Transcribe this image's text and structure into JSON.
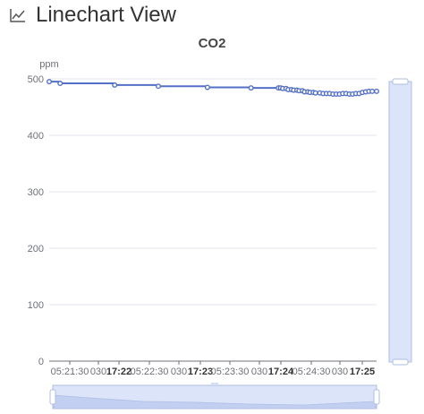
{
  "header": {
    "title": "Linechart View",
    "icon": "line-chart-icon"
  },
  "chart_data": {
    "type": "line",
    "title": "CO2",
    "ylabel": "ppm",
    "xlabel": "",
    "ylim": [
      0,
      500
    ],
    "y_ticks": [
      0,
      100,
      200,
      300,
      400,
      500
    ],
    "x_tick_labels": [
      {
        "text": "05:21:30",
        "bold": false
      },
      {
        "text": "030",
        "bold": false
      },
      {
        "text": "17:22",
        "bold": true
      },
      {
        "text": "05:22:30",
        "bold": false
      },
      {
        "text": "030",
        "bold": false
      },
      {
        "text": "17:23",
        "bold": true
      },
      {
        "text": "05:23:30",
        "bold": false
      },
      {
        "text": "030",
        "bold": false
      },
      {
        "text": "17:24",
        "bold": true
      },
      {
        "text": "05:24:30",
        "bold": false
      },
      {
        "text": "030",
        "bold": false
      },
      {
        "text": "17:25",
        "bold": true
      }
    ],
    "grid": true,
    "series": [
      {
        "color": "#5470c6",
        "points": [
          {
            "t": 0,
            "y": 495
          },
          {
            "t": 10,
            "y": 492
          },
          {
            "t": 60,
            "y": 489
          },
          {
            "t": 100,
            "y": 487
          },
          {
            "t": 145,
            "y": 485
          },
          {
            "t": 185,
            "y": 484
          },
          {
            "t": 210,
            "y": 484
          },
          {
            "t": 212,
            "y": 484
          },
          {
            "t": 214,
            "y": 483
          },
          {
            "t": 217,
            "y": 483
          },
          {
            "t": 219,
            "y": 481
          },
          {
            "t": 222,
            "y": 481
          },
          {
            "t": 224,
            "y": 480
          },
          {
            "t": 227,
            "y": 480
          },
          {
            "t": 229,
            "y": 479
          },
          {
            "t": 232,
            "y": 479
          },
          {
            "t": 234,
            "y": 477
          },
          {
            "t": 237,
            "y": 477
          },
          {
            "t": 239,
            "y": 476
          },
          {
            "t": 242,
            "y": 476
          },
          {
            "t": 244,
            "y": 475
          },
          {
            "t": 248,
            "y": 475
          },
          {
            "t": 251,
            "y": 474
          },
          {
            "t": 254,
            "y": 474
          },
          {
            "t": 257,
            "y": 474
          },
          {
            "t": 260,
            "y": 473
          },
          {
            "t": 263,
            "y": 473
          },
          {
            "t": 266,
            "y": 473
          },
          {
            "t": 269,
            "y": 474
          },
          {
            "t": 272,
            "y": 474
          },
          {
            "t": 275,
            "y": 473
          },
          {
            "t": 278,
            "y": 473
          },
          {
            "t": 281,
            "y": 474
          },
          {
            "t": 284,
            "y": 474
          },
          {
            "t": 287,
            "y": 476
          },
          {
            "t": 290,
            "y": 477
          },
          {
            "t": 293,
            "y": 478
          },
          {
            "t": 296,
            "y": 478
          },
          {
            "t": 300,
            "y": 478
          }
        ]
      }
    ],
    "colors": {
      "line": "#5470c6",
      "zoom_fill": "#dbe4f8",
      "zoom_border": "#aebee6"
    }
  }
}
